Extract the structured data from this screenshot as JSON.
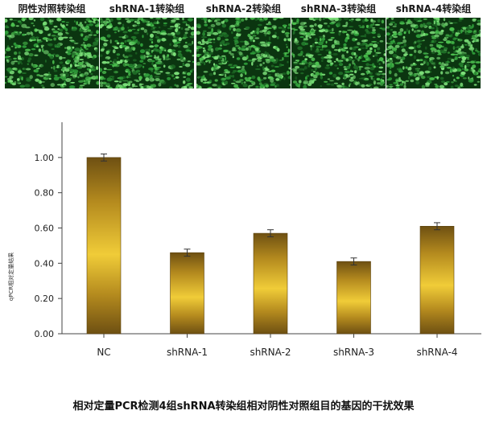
{
  "panels": [
    {
      "label": "阴性对照转染组"
    },
    {
      "label": "shRNA-1转染组"
    },
    {
      "label": "shRNA-2转染组"
    },
    {
      "label": "shRNA-3转染组"
    },
    {
      "label": "shRNA-4转染组"
    }
  ],
  "colors": {
    "panel_dark": "#0b3510",
    "panel_green": "#2f9e3a",
    "panel_bright": "#7de07a",
    "bar_dark": "#6e5012",
    "bar_mid": "#b48a1e",
    "bar_light": "#f0cc38",
    "axis": "#444444"
  },
  "chart_data": {
    "type": "bar",
    "categories": [
      "NC",
      "shRNA-1",
      "shRNA-2",
      "shRNA-3",
      "shRNA-4"
    ],
    "values": [
      1.0,
      0.46,
      0.57,
      0.41,
      0.61
    ],
    "errors": [
      0.02,
      0.02,
      0.02,
      0.02,
      0.02
    ],
    "ylabel": "qPCR相对定量结果",
    "ylim": [
      0,
      1.2
    ],
    "yticks": [
      0.0,
      0.2,
      0.4,
      0.6,
      0.8,
      1.0
    ],
    "ytick_labels": [
      "0.00",
      "0.20",
      "0.40",
      "0.60",
      "0.80",
      "1.00"
    ],
    "grid": false
  },
  "caption": "相对定量PCR检测4组shRNA转染组相对阴性对照组目的基因的干扰效果"
}
